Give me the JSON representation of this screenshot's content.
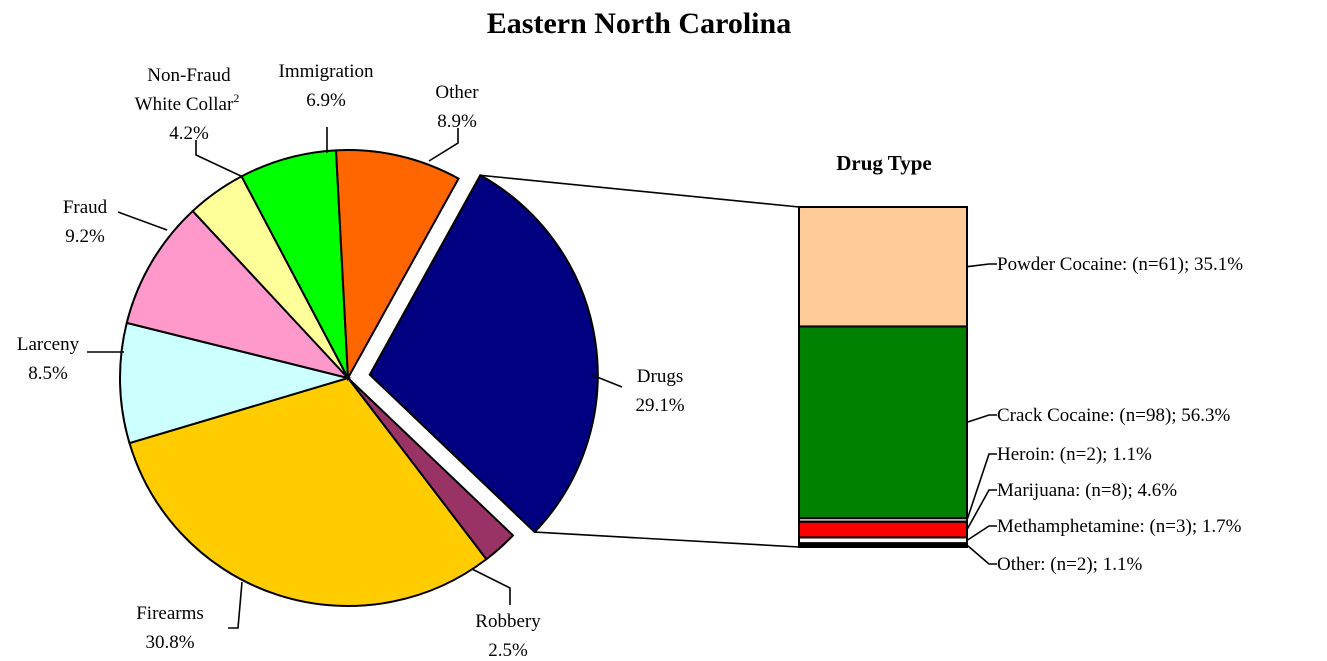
{
  "chart_data": [
    {
      "type": "pie",
      "title": "Eastern North Carolina",
      "slices": [
        {
          "name": "Drugs",
          "pct_label": "29.1%",
          "value": 29.1,
          "color": "#000080",
          "exploded": true
        },
        {
          "name": "Robbery",
          "pct_label": "2.5%",
          "value": 2.5,
          "color": "#993366"
        },
        {
          "name": "Firearms",
          "pct_label": "30.8%",
          "value": 30.8,
          "color": "#FFCC00"
        },
        {
          "name": "Larceny",
          "pct_label": "8.5%",
          "value": 8.5,
          "color": "#CCFFFF"
        },
        {
          "name": "Fraud",
          "pct_label": "9.2%",
          "value": 9.2,
          "color": "#FF99CC"
        },
        {
          "name_line1": "Non-Fraud",
          "name_line2": "White Collar",
          "name_sup": "2",
          "pct_label": "4.2%",
          "value": 4.2,
          "color": "#FFFF99"
        },
        {
          "name": "Immigration",
          "pct_label": "6.9%",
          "value": 6.9,
          "color": "#00FF00"
        },
        {
          "name": "Other",
          "pct_label": "8.9%",
          "value": 8.9,
          "color": "#FF6600"
        }
      ]
    },
    {
      "type": "bar",
      "stacked": true,
      "title": "Drug Type",
      "segments": [
        {
          "name": "Powder Cocaine",
          "n": 61,
          "pct": 35.1,
          "label": "Powder Cocaine: (n=61); 35.1%",
          "color": "#FFCC99"
        },
        {
          "name": "Crack Cocaine",
          "n": 98,
          "pct": 56.3,
          "label": "Crack Cocaine: (n=98); 56.3%",
          "color": "#008000"
        },
        {
          "name": "Heroin",
          "n": 2,
          "pct": 1.1,
          "label": "Heroin: (n=2); 1.1%",
          "color": "#C0C0C0"
        },
        {
          "name": "Marijuana",
          "n": 8,
          "pct": 4.6,
          "label": "Marijuana: (n=8); 4.6%",
          "color": "#FF0000"
        },
        {
          "name": "Methamphetamine",
          "n": 3,
          "pct": 1.7,
          "label": "Methamphetamine: (n=3); 1.7%",
          "color": "#FFFFFF"
        },
        {
          "name": "Other",
          "n": 2,
          "pct": 1.1,
          "label": "Other: (n=2); 1.1%",
          "color": "#000000"
        }
      ]
    }
  ]
}
